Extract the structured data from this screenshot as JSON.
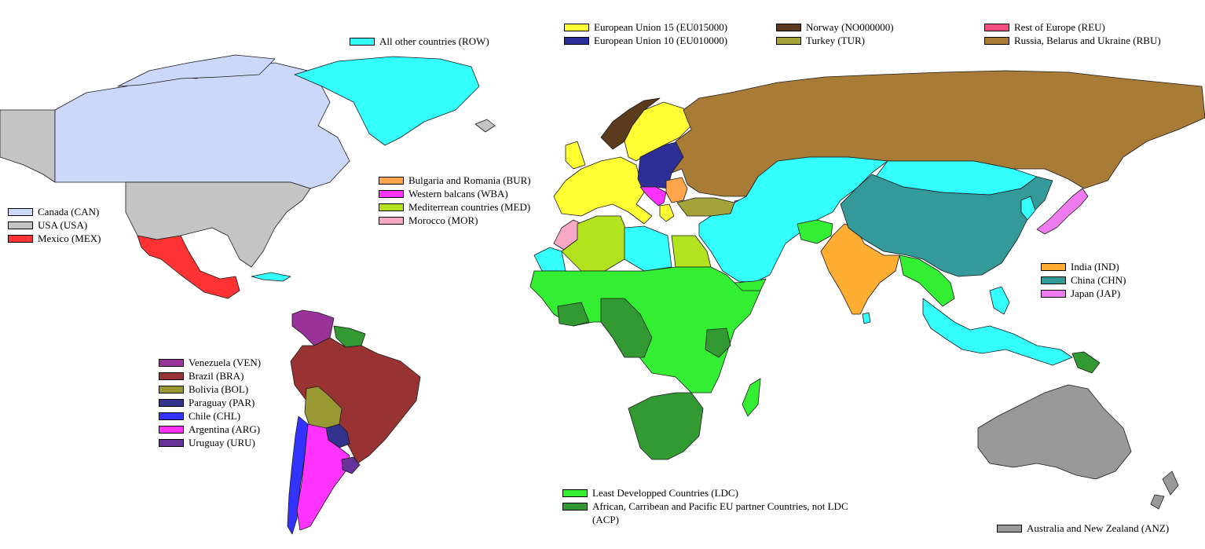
{
  "colors": {
    "ROW": "#33ffff",
    "EU15": "#ffff33",
    "EU10": "#2e2e99",
    "NOR": "#5c3a1e",
    "TUR": "#a3a33a",
    "REU": "#f2507f",
    "RBU": "#a87c36",
    "CAN": "#ccd8fa",
    "USA": "#c4c4c4",
    "MEX": "#ff3333",
    "BUR": "#ffa64d",
    "WBA": "#ff33ff",
    "MED": "#b3e31f",
    "MOR": "#f7a8c4",
    "IND": "#ffad33",
    "CHN": "#339999",
    "JAP": "#f07af0",
    "VEN": "#993399",
    "BRA": "#993333",
    "BOL": "#999933",
    "PAR": "#33338f",
    "CHL": "#3333ff",
    "ARG": "#ff33ff",
    "URU": "#663399",
    "LDC": "#33ee33",
    "ACP": "#339933",
    "ANZ": "#999999"
  },
  "legends": {
    "row": [
      "All other countries (ROW)"
    ],
    "europe_a": [
      "European Union 15 (EU015000)",
      "European Union 10 (EU010000)"
    ],
    "europe_b": [
      "Norway (NO000000)",
      "Turkey (TUR)"
    ],
    "europe_c": [
      "Rest of Europe (REU)",
      "Russia, Belarus and Ukraine (RBU)"
    ],
    "north_america": [
      "Canada (CAN)",
      "USA (USA)",
      "Mexico (MEX)"
    ],
    "mediterranean": [
      "Bulgaria and Romania (BUR)",
      "Western balcans (WBA)",
      "Mediterrean countries (MED)",
      "Morocco (MOR)"
    ],
    "asia": [
      "India (IND)",
      "China (CHN)",
      "Japan (JAP)"
    ],
    "south_america": [
      "Venezuela (VEN)",
      "Brazil (BRA)",
      "Bolivia (BOL)",
      "Paraguay (PAR)",
      "Chile (CHL)",
      "Argentina (ARG)",
      "Uruguay (URU)"
    ],
    "africa": [
      "Least Developped Countries (LDC)",
      "African, Carribean and Pacific EU partner Countries, not LDC (ACP)"
    ],
    "oceania": [
      "Australia and New Zealand (ANZ)"
    ]
  }
}
